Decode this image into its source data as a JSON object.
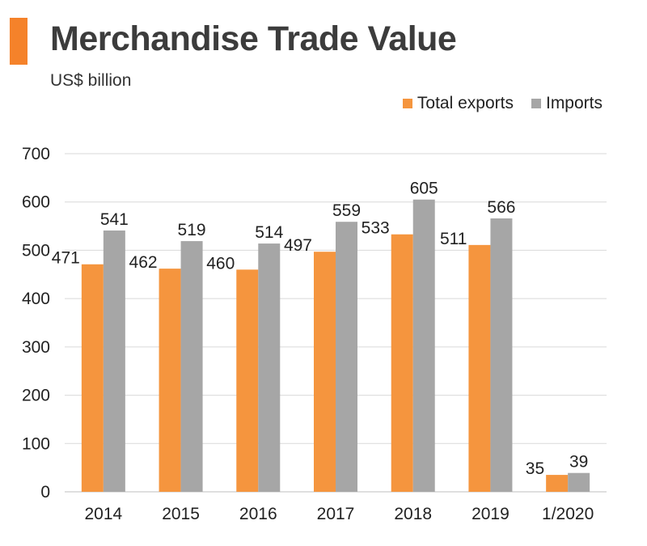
{
  "header": {
    "title": "Merchandise Trade Value",
    "subtitle": "US$ billion"
  },
  "colors": {
    "accent": "#f5822a",
    "exports": "#f5953e",
    "imports": "#a6a6a6",
    "grid": "#d9d9d9"
  },
  "chart_data": {
    "type": "bar",
    "title": "Merchandise Trade Value",
    "subtitle": "US$ billion",
    "xlabel": "",
    "ylabel": "US$ billion",
    "ylim": [
      0,
      700
    ],
    "yticks": [
      "0",
      "100",
      "200",
      "300",
      "400",
      "500",
      "600",
      "700"
    ],
    "grid": true,
    "legend_position": "top-right",
    "categories": [
      "2014",
      "2015",
      "2016",
      "2017",
      "2018",
      "2019",
      "1/2020"
    ],
    "series": [
      {
        "name": "Total exports",
        "values": [
          471,
          462,
          460,
          497,
          533,
          511,
          35
        ],
        "labels": [
          "471",
          "462",
          "460",
          "497",
          "533",
          "511",
          "35"
        ]
      },
      {
        "name": "Imports",
        "values": [
          541,
          519,
          514,
          559,
          605,
          566,
          39
        ],
        "labels": [
          "541",
          "519",
          "514",
          "559",
          "605",
          "566",
          "39"
        ]
      }
    ]
  }
}
